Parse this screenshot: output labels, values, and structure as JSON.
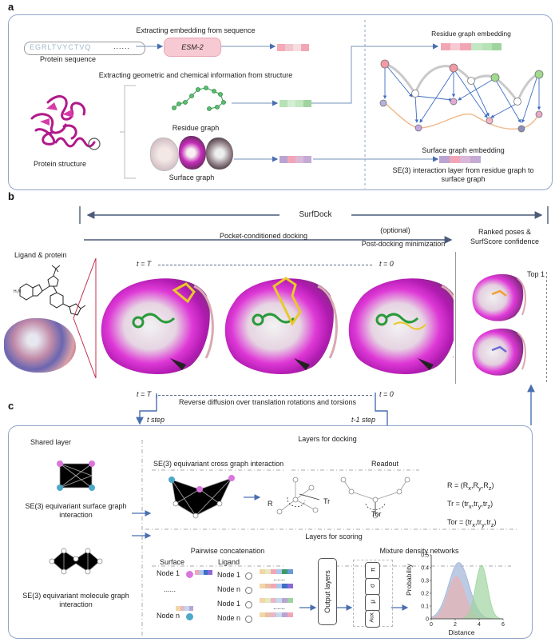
{
  "panel_a": {
    "letter": "a",
    "seq_title": "Extracting embedding from sequence",
    "sequence": "EGRLTVYCTVQ",
    "sequence_ellipsis": "......",
    "sequence_label": "Protein sequence",
    "esm_label": "ESM-2",
    "struct_title": "Extracting geometric and chemical information from structure",
    "residue_graph_label": "Residue graph",
    "surface_graph_label": "Surface graph",
    "structure_label": "Protein structure",
    "residue_embedding_label": "Residue graph embedding",
    "surface_embedding_label": "Surface graph embedding",
    "interaction_label": "SE(3) interaction layer from residue graph to surface graph"
  },
  "panel_b": {
    "letter": "b",
    "title": "SurfDock",
    "pocket_docking": "Pocket-conditioned docking",
    "optional": "(optional)",
    "minimization": "Post-docking minimization",
    "ranked": "Ranked poses & SurfScore confidence",
    "ligand_protein": "Ligand & protein",
    "t_T_top": "t = T",
    "t_0_top": "t = 0",
    "t_T_bottom": "t = T",
    "t_0_bottom": "t = 0",
    "top1": "Top 1",
    "reverse_diffusion": "Reverse diffusion over translation rotations and torsions"
  },
  "panel_c": {
    "letter": "c",
    "t_step": "t step",
    "t1_step": "t-1 step",
    "shared_layer": "Shared layer",
    "layers_docking": "Layers for docking",
    "cross_graph": "SE(3) equivariant cross graph interaction",
    "readout": "Readout",
    "surface_interaction": "SE(3) equivariant surface graph interaction",
    "R_label": "R",
    "Tr_label": "Tr",
    "Tor_label": "Tor",
    "R_eq": "R = (R",
    "Tr_eq": "Tr = (tr",
    "Tor_eq": "Tor = (tr",
    "layers_scoring": "Layers for scoring",
    "pairwise": "Pairwise concatenation",
    "mixture": "Mixture density networks",
    "surface": "Surface",
    "ligand": "Ligand",
    "node1": "Node 1",
    "noden": "Node n",
    "ellipsis": "......",
    "molecule_interaction": "SE(3) equivariant molecule graph interaction",
    "output_layers": "Output layers",
    "mdn_pi": "π",
    "mdn_sigma": "σ",
    "mdn_mu": "μ",
    "mdn_aux": "Aux.",
    "ylabel": "Probability",
    "xlabel": "Distance",
    "yticks": [
      "0",
      "0.1",
      "0.2",
      "0.3",
      "0.4",
      "0.5"
    ],
    "xticks": [
      "0",
      "2",
      "4",
      "6"
    ]
  },
  "colors": {
    "panel_border": "#8fa6c8",
    "arrow": "#4a6fb0",
    "pink": "#f2a6b5",
    "green": "#a9dcaa",
    "purple": "#b9a3d3",
    "magenta": "#d02ad0"
  },
  "chart_data": {
    "type": "area",
    "xlabel": "Distance",
    "ylabel": "Probability",
    "xlim": [
      0,
      6
    ],
    "ylim": [
      0,
      0.5
    ],
    "series": [
      {
        "color": "#9fb4d8",
        "mean": 2.3,
        "sd": 0.85,
        "peak": 0.44
      },
      {
        "color": "#e8b2b2",
        "mean": 2.1,
        "sd": 0.7,
        "peak": 0.33
      },
      {
        "color": "#9fd49f",
        "mean": 4.2,
        "sd": 0.5,
        "peak": 0.42
      }
    ]
  }
}
